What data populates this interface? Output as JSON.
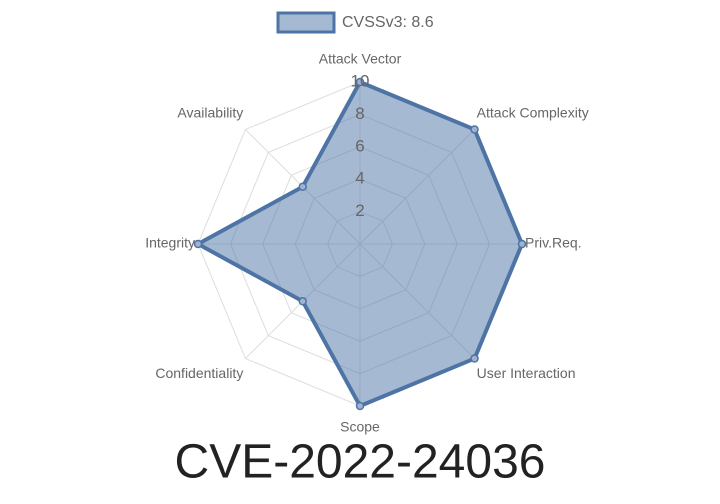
{
  "chart_data": {
    "type": "radar",
    "title": "CVE-2022-24036",
    "categories": [
      "Attack Vector",
      "Attack Complexity",
      "Priv.Req.",
      "User Interaction",
      "Scope",
      "Confidentiality",
      "Integrity",
      "Availability"
    ],
    "series": [
      {
        "name": "CVSSv3: 8.6",
        "color": "#4e74a6",
        "values": [
          10,
          10,
          10,
          10,
          10,
          5,
          10,
          5
        ]
      }
    ],
    "ylim": [
      0,
      10
    ],
    "yticks": [
      2,
      4,
      6,
      8,
      10
    ],
    "grid": true,
    "legend": "top"
  }
}
